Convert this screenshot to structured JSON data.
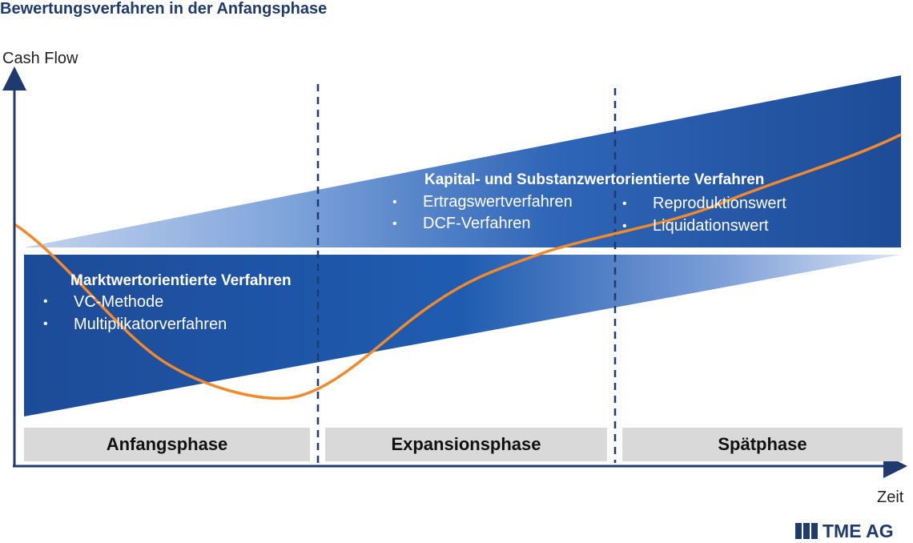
{
  "title": "Bewertungsverfahren in der Anfangsphase",
  "axes": {
    "y_label": "Cash Flow",
    "x_label": "Zeit"
  },
  "upper_band": {
    "heading": "Kapital- und Substanzwertorientierte Verfahren",
    "items_left": [
      "Ertragswertverfahren",
      "DCF-Verfahren"
    ],
    "items_right": [
      "Reproduktionswert",
      "Liquidationswert"
    ]
  },
  "lower_band": {
    "heading": "Marktwertorientierte Verfahren",
    "items": [
      "VC-Methode",
      "Multiplikatorverfahren"
    ]
  },
  "phases": [
    "Anfangsphase",
    "Expansionsphase",
    "Spätphase"
  ],
  "colors": {
    "band_dark": "#1e4f9c",
    "band_light": "#b8c9e8",
    "curve": "#f08a2c",
    "axis": "#1f3a6e",
    "phase_box": "#d9d9d9"
  },
  "logo": {
    "text": "TME AG"
  }
}
